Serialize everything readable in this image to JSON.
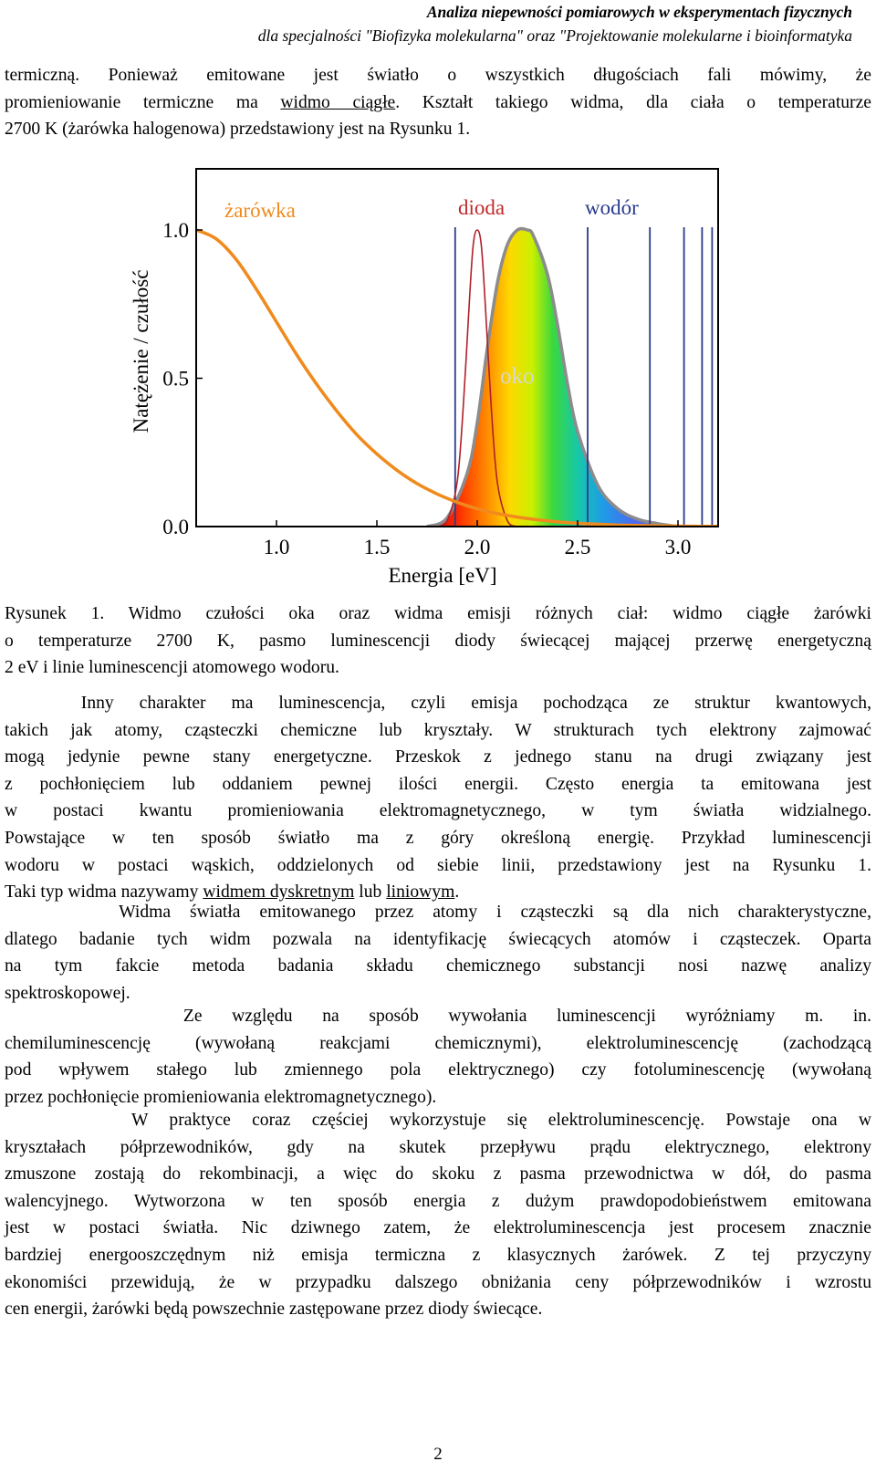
{
  "header": {
    "line1": "Analiza niepewności pomiarowych w eksperymentach fizycznych",
    "line2": "dla specjalności \"Biofizyka molekularna\" oraz \"Projektowanie molekularne i bioinformatyka"
  },
  "intro": {
    "l1": "termiczną. Ponieważ emitowane jest światło o wszystkich długościach fali mówimy, że",
    "l2a": "promieniowanie termiczne ma ",
    "l2u": "widmo ciągłe",
    "l2b": ". Kształt takiego widma, dla ciała o temperaturze",
    "l3": "2700 K (żarówka halogenowa) przedstawiony jest na Rysunku 1."
  },
  "chart_data": {
    "type": "line",
    "xlabel": "Energia [eV]",
    "ylabel": "Natężenie / czułość",
    "xlim": [
      0.6,
      3.2
    ],
    "ylim": [
      0.0,
      1.0
    ],
    "xticks": [
      "1.0",
      "1.5",
      "2.0",
      "2.5",
      "3.0"
    ],
    "yticks": [
      "0.0",
      "0.5",
      "1.0"
    ],
    "annotations": [
      "żarówka",
      "dioda",
      "wodór",
      "oko"
    ],
    "series": [
      {
        "name": "żarówka",
        "color": "#f08a1c",
        "x": [
          0.6,
          0.7,
          0.8,
          0.9,
          1.0,
          1.1,
          1.2,
          1.3,
          1.4,
          1.5,
          1.6,
          1.7,
          1.8,
          1.9,
          2.0,
          2.1,
          2.2,
          2.3,
          2.4,
          2.5,
          2.6,
          2.7,
          2.8,
          2.9,
          3.0,
          3.1,
          3.2
        ],
        "y": [
          1.0,
          0.97,
          0.9,
          0.8,
          0.69,
          0.58,
          0.48,
          0.39,
          0.31,
          0.245,
          0.19,
          0.145,
          0.11,
          0.082,
          0.06,
          0.044,
          0.032,
          0.023,
          0.016,
          0.011,
          0.008,
          0.005,
          0.0035,
          0.0024,
          0.0016,
          0.001,
          0.0007
        ]
      },
      {
        "name": "dioda",
        "color": "#b0202a",
        "x": [
          1.8,
          1.85,
          1.9,
          1.93,
          1.96,
          1.98,
          2.0,
          2.02,
          2.04,
          2.07,
          2.1,
          2.15,
          2.2
        ],
        "y": [
          0.0,
          0.02,
          0.15,
          0.4,
          0.75,
          0.95,
          1.0,
          0.95,
          0.75,
          0.4,
          0.15,
          0.02,
          0.0
        ]
      },
      {
        "name": "oko",
        "color": "#8c8c8c",
        "x": [
          1.75,
          1.85,
          1.95,
          2.0,
          2.05,
          2.1,
          2.15,
          2.2,
          2.25,
          2.28,
          2.35,
          2.4,
          2.45,
          2.5,
          2.6,
          2.7,
          2.8,
          2.9,
          3.0
        ],
        "y": [
          0.0,
          0.03,
          0.18,
          0.35,
          0.6,
          0.82,
          0.95,
          1.0,
          1.0,
          0.98,
          0.85,
          0.68,
          0.48,
          0.32,
          0.14,
          0.06,
          0.025,
          0.01,
          0.0
        ]
      },
      {
        "name": "wodór",
        "color": "#2a3a8c",
        "x": [
          1.89,
          2.55,
          2.86,
          3.03,
          3.12,
          3.17
        ],
        "y": [
          1.0,
          1.0,
          1.0,
          1.0,
          1.0,
          1.0
        ]
      }
    ]
  },
  "caption": {
    "c1": "Rysunek 1. Widmo czułości oka oraz widma emisji różnych ciał: widmo ciągłe żarówki",
    "c2": "o temperaturze 2700 K, pasmo luminescencji diody świecącej mającej przerwę energetyczną",
    "c3": "2 eV i linie luminescencji atomowego wodoru."
  },
  "body": {
    "p1": [
      "   Inny charakter ma luminescencja, czyli emisja pochodząca ze struktur kwantowych,",
      "takich jak atomy, cząsteczki chemiczne lub kryształy. W strukturach tych elektrony zajmować",
      "mogą jedynie pewne stany energetyczne. Przeskok z jednego stanu na drugi związany jest",
      "z pochłonięciem lub oddaniem pewnej ilości energii. Często energia ta emitowana jest",
      "w postaci kwantu promieniowania elektromagnetycznego, w tym światła widzialnego.",
      "Powstające w ten sposób światło ma z góry określoną energię. Przykład luminescencji",
      "wodoru w postaci wąskich, oddzielonych od siebie linii, przedstawiony jest na Rysunku 1."
    ],
    "p1_last": {
      "a": "Taki typ widma nazywamy ",
      "u1": "widmem dyskretnym",
      "b": " lub ",
      "u2": "liniowym",
      "c": "."
    },
    "p2": [
      "      Widma światła emitowanego przez atomy i cząsteczki są dla nich charakterystyczne,",
      "dlatego badanie tych widm pozwala na identyfikację świecących atomów i cząsteczek. Oparta",
      "na tym fakcie metoda badania składu chemicznego substancji nosi nazwę analizy",
      "spektroskopowej."
    ],
    "p3": [
      "      Ze względu na sposób wywołania luminescencji wyróżniamy m. in.",
      "chemiluminescencję (wywołaną reakcjami chemicznymi), elektroluminescencję (zachodzącą",
      "pod wpływem stałego lub zmiennego pola elektrycznego) czy fotoluminescencję (wywołaną",
      "przez pochłonięcie promieniowania elektromagnetycznego)."
    ],
    "p4": [
      "      W praktyce coraz częściej wykorzystuje się elektroluminescencję. Powstaje ona w",
      "kryształach półprzewodników, gdy na skutek przepływu prądu elektrycznego, elektrony",
      "zmuszone zostają do rekombinacji, a więc do skoku z pasma przewodnictwa w dół, do pasma",
      "walencyjnego. Wytworzona w ten sposób energia z dużym prawdopodobieństwem emitowana",
      "jest w postaci światła. Nic dziwnego zatem, że elektroluminescencja jest procesem znacznie",
      "bardziej energooszczędnym niż emisja termiczna z klasycznych żarówek. Z tej przyczyny",
      "ekonomiści przewidują, że w przypadku dalszego obniżania ceny półprzewodników i wzrostu",
      "cen energii, żarówki będą powszechnie zastępowane przez diody świecące."
    ]
  },
  "page_number": "2"
}
